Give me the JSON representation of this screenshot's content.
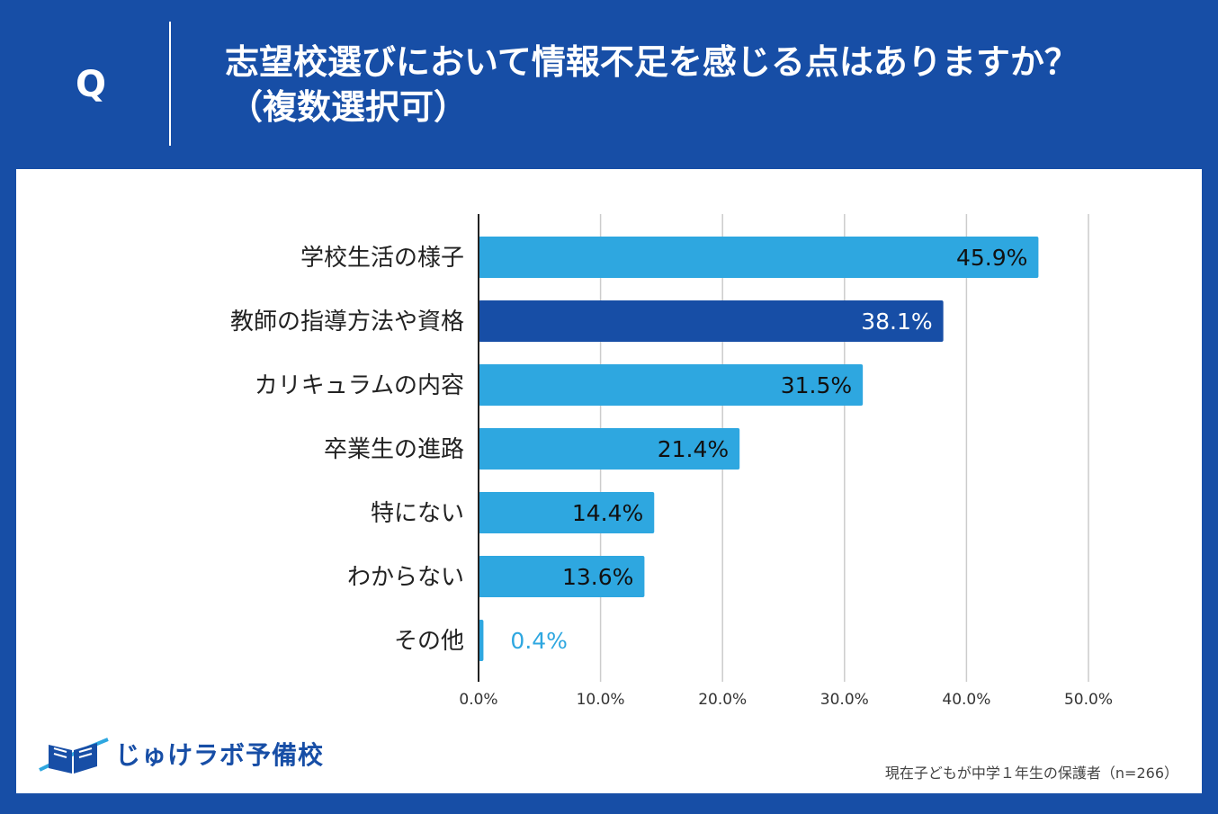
{
  "header": {
    "q_label": "Q",
    "title_line1": "志望校選びにおいて情報不足を感じる点はありますか？",
    "title_line2": "（複数選択可）"
  },
  "colors": {
    "background": "#174ea6",
    "bar": "#2ea7e0",
    "bar_highlight": "#174ea6"
  },
  "chart_data": {
    "type": "bar",
    "orientation": "horizontal",
    "title": "志望校選びにおいて情報不足を感じる点はありますか？（複数選択可）",
    "categories": [
      "学校生活の様子",
      "教師の指導方法や資格",
      "カリキュラムの内容",
      "卒業生の進路",
      "特にない",
      "わからない",
      "その他"
    ],
    "values": [
      45.9,
      38.1,
      31.5,
      21.4,
      14.4,
      13.6,
      0.4
    ],
    "value_labels": [
      "45.9%",
      "38.1%",
      "31.5%",
      "21.4%",
      "14.4%",
      "13.6%",
      "0.4%"
    ],
    "highlight_index": 1,
    "xlim": [
      0,
      50
    ],
    "xticks": [
      0,
      10,
      20,
      30,
      40,
      50
    ],
    "xtick_labels": [
      "0.0%",
      "10.0%",
      "20.0%",
      "30.0%",
      "40.0%",
      "50.0%"
    ],
    "grid": true,
    "xlabel": "",
    "ylabel": ""
  },
  "logo": {
    "text": "じゅけラボ予備校"
  },
  "footnote": "現在子どもが中学１年生の保護者（n=266）"
}
